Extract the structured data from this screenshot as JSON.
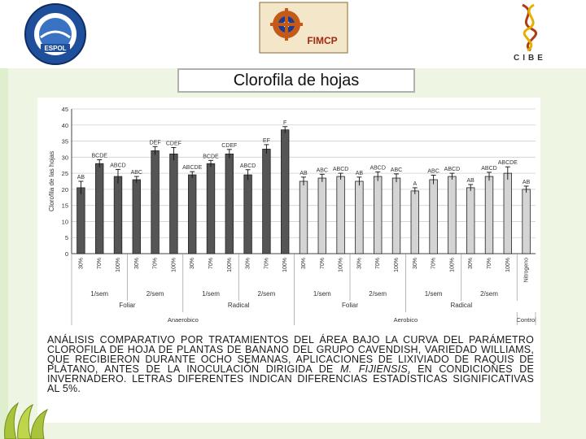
{
  "header": {
    "logo_left_text": "ESPOL",
    "logo_center_text": "FIMCP",
    "logo_right_text": "CIBE"
  },
  "slide_title": "Clorofila de hojas",
  "chart_data": {
    "type": "bar",
    "ylabel": "Clorofila de las hojas",
    "ylim": [
      0,
      45
    ],
    "yticks": [
      0,
      5,
      10,
      15,
      20,
      25,
      30,
      35,
      40,
      45
    ],
    "categories": [
      "30%",
      "70%",
      "100%",
      "30%",
      "70%",
      "100%",
      "30%",
      "70%",
      "100%",
      "30%",
      "70%",
      "100%",
      "30%",
      "70%",
      "100%",
      "30%",
      "70%",
      "100%",
      "30%",
      "70%",
      "100%",
      "30%",
      "70%",
      "100%",
      "Nitrogeno"
    ],
    "values": [
      20.5,
      28,
      24,
      23,
      32,
      31,
      24.5,
      28,
      31,
      24.5,
      32.5,
      38.5,
      22.5,
      23.5,
      24,
      22.5,
      24,
      23.5,
      19.5,
      23,
      24,
      20.5,
      24,
      25,
      20
    ],
    "errors": [
      2,
      1.2,
      2.2,
      1,
      1.3,
      2,
      1,
      1,
      1.4,
      1.6,
      1.4,
      1,
      1.3,
      1.2,
      1,
      1.3,
      1.4,
      1.3,
      1,
      1.4,
      1,
      1,
      1.3,
      2,
      1
    ],
    "letters": [
      "AB",
      "BCDE",
      "ABCD",
      "ABC",
      "DEF",
      "CDEF",
      "ABCDE",
      "BCDE",
      "CDEF",
      "ABCD",
      "EF",
      "F",
      "AB",
      "ABC",
      "ABCD",
      "AB",
      "ABCD",
      "ABC",
      "A",
      "ABC",
      "ABCD",
      "AB",
      "ABCD",
      "ABCDE",
      "AB"
    ],
    "series_colors": {
      "anaerobico": "#555555",
      "aerobico": "#d4d4d4",
      "control": "#d4d4d4"
    },
    "group_level1": [
      "1/sem",
      "2/sem",
      "1/sem",
      "2/sem",
      "1/sem",
      "2/sem",
      "1/sem",
      "2/sem"
    ],
    "group_level2": [
      "Foliar",
      "Radical",
      "Foliar",
      "Radical"
    ],
    "group_level3": [
      "Anaerobico",
      "Aerobico",
      "Control"
    ],
    "grid": true
  },
  "caption": {
    "part1": "Análisis comparativo por tratamientos del área bajo la curva del parámetro clorofila de hoja de plantas de banano del grupo Cavendish, variedad Williams, que recibieron durante ocho semanas, aplicaciones de lixiviado de raquis de plátano, antes de la inoculación dirigida de ",
    "italic": "M. fijiensis",
    "part2": ", en condiciones de invernadero. Letras diferentes indican diferencias estadísticas significativas al 5%."
  }
}
